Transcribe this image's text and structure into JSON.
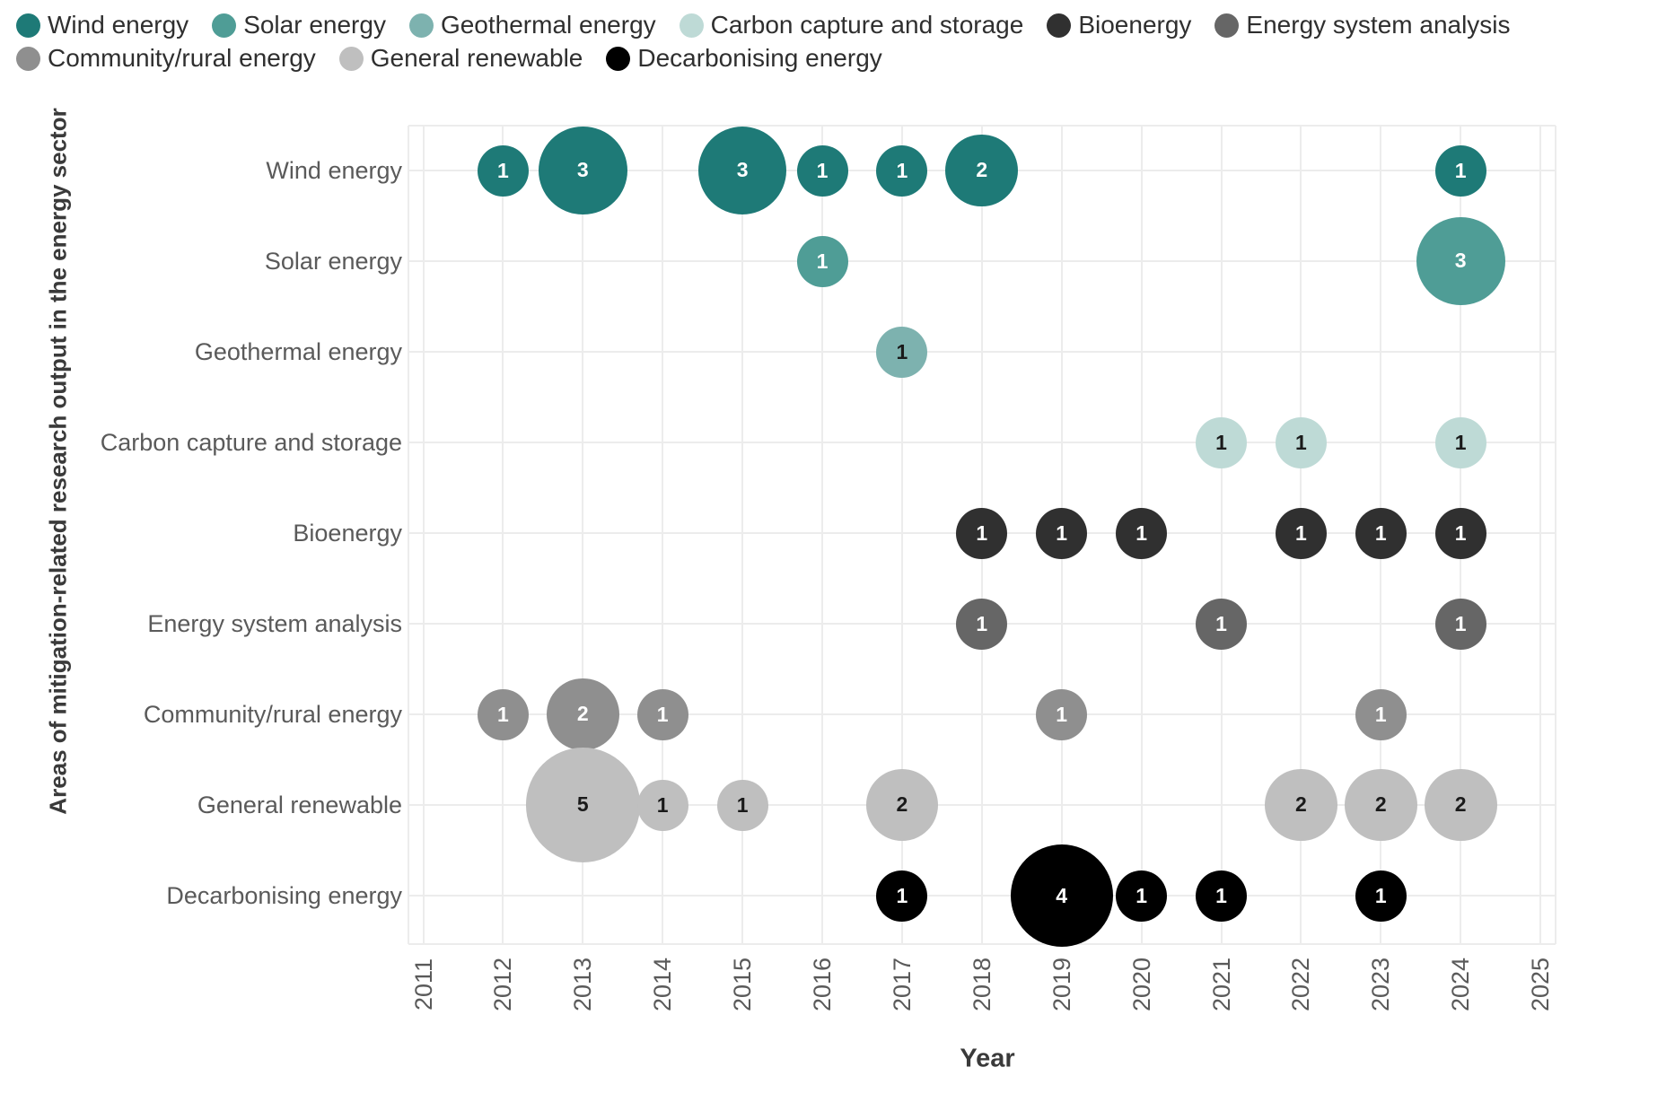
{
  "chart_data": {
    "type": "scatter",
    "subtype": "bubble",
    "title": "",
    "xlabel": "Year",
    "ylabel": "Areas of mitigation-related research output in the energy sector",
    "x_ticks": [
      2011,
      2012,
      2013,
      2014,
      2015,
      2016,
      2017,
      2018,
      2019,
      2020,
      2021,
      2022,
      2023,
      2024,
      2025
    ],
    "categories": [
      "Wind energy",
      "Solar energy",
      "Geothermal energy",
      "Carbon capture and storage",
      "Bioenergy",
      "Energy system analysis",
      "Community/rural energy",
      "General renewable",
      "Decarbonising energy"
    ],
    "grid": true,
    "legend_position": "top-left",
    "size_encoding": "bubble area proportional to count; count printed in bubble",
    "series": [
      {
        "name": "Wind energy",
        "color": "#1e7a77",
        "label_color": "#ffffff",
        "points": [
          {
            "x": 2012,
            "value": 1
          },
          {
            "x": 2013,
            "value": 3
          },
          {
            "x": 2015,
            "value": 3
          },
          {
            "x": 2016,
            "value": 1
          },
          {
            "x": 2017,
            "value": 1
          },
          {
            "x": 2018,
            "value": 2
          },
          {
            "x": 2024,
            "value": 1
          }
        ]
      },
      {
        "name": "Solar energy",
        "color": "#4f9d96",
        "label_color": "#ffffff",
        "points": [
          {
            "x": 2016,
            "value": 1
          },
          {
            "x": 2024,
            "value": 3
          }
        ]
      },
      {
        "name": "Geothermal energy",
        "color": "#7db2af",
        "label_color": "#1a1a1a",
        "points": [
          {
            "x": 2017,
            "value": 1
          }
        ]
      },
      {
        "name": "Carbon capture and storage",
        "color": "#bedad6",
        "label_color": "#1a1a1a",
        "points": [
          {
            "x": 2021,
            "value": 1
          },
          {
            "x": 2022,
            "value": 1
          },
          {
            "x": 2024,
            "value": 1
          }
        ]
      },
      {
        "name": "Bioenergy",
        "color": "#303030",
        "label_color": "#ffffff",
        "points": [
          {
            "x": 2018,
            "value": 1
          },
          {
            "x": 2019,
            "value": 1
          },
          {
            "x": 2020,
            "value": 1
          },
          {
            "x": 2022,
            "value": 1
          },
          {
            "x": 2023,
            "value": 1
          },
          {
            "x": 2024,
            "value": 1
          }
        ]
      },
      {
        "name": "Energy system analysis",
        "color": "#666666",
        "label_color": "#ffffff",
        "points": [
          {
            "x": 2018,
            "value": 1
          },
          {
            "x": 2021,
            "value": 1
          },
          {
            "x": 2024,
            "value": 1
          }
        ]
      },
      {
        "name": "Community/rural energy",
        "color": "#8f8f8f",
        "label_color": "#ffffff",
        "points": [
          {
            "x": 2012,
            "value": 1
          },
          {
            "x": 2013,
            "value": 2
          },
          {
            "x": 2014,
            "value": 1
          },
          {
            "x": 2019,
            "value": 1
          },
          {
            "x": 2023,
            "value": 1
          }
        ]
      },
      {
        "name": "General renewable",
        "color": "#bfbfbf",
        "label_color": "#1a1a1a",
        "points": [
          {
            "x": 2013,
            "value": 5
          },
          {
            "x": 2014,
            "value": 1
          },
          {
            "x": 2015,
            "value": 1
          },
          {
            "x": 2017,
            "value": 2
          },
          {
            "x": 2022,
            "value": 2
          },
          {
            "x": 2023,
            "value": 2
          },
          {
            "x": 2024,
            "value": 2
          }
        ]
      },
      {
        "name": "Decarbonising energy",
        "color": "#000000",
        "label_color": "#ffffff",
        "points": [
          {
            "x": 2017,
            "value": 1
          },
          {
            "x": 2019,
            "value": 4
          },
          {
            "x": 2020,
            "value": 1
          },
          {
            "x": 2021,
            "value": 1
          },
          {
            "x": 2023,
            "value": 1
          }
        ]
      }
    ],
    "legend_rows": [
      [
        0,
        1,
        2,
        3,
        4,
        5
      ],
      [
        6,
        7,
        8
      ]
    ]
  }
}
